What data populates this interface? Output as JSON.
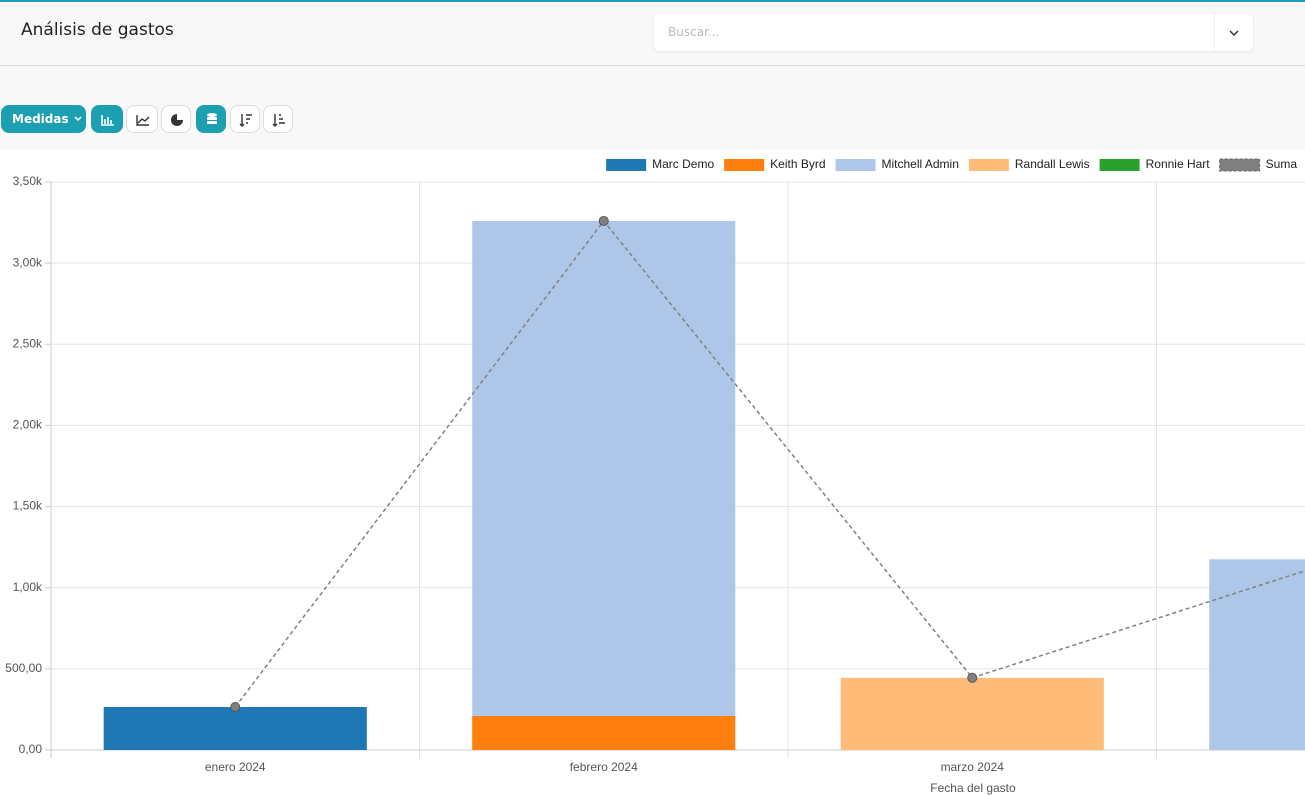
{
  "header": {
    "title": "Análisis de gastos",
    "search_placeholder": "Buscar..."
  },
  "toolbar": {
    "measures": "Medidas"
  },
  "chart_data": {
    "type": "bar",
    "stacked": true,
    "x_label": "Fecha del gasto",
    "categories": [
      "enero 2024",
      "febrero 2024",
      "marzo 2024",
      null
    ],
    "series": [
      {
        "name": "Marc Demo",
        "color": "#1f77b4",
        "values": [
          265,
          null,
          null,
          null
        ]
      },
      {
        "name": "Keith Byrd",
        "color": "#ff7f0e",
        "values": [
          null,
          210,
          null,
          null
        ]
      },
      {
        "name": "Mitchell Admin",
        "color": "#aec7e8",
        "values": [
          null,
          3050,
          null,
          1175
        ]
      },
      {
        "name": "Randall Lewis",
        "color": "#ffbb78",
        "values": [
          null,
          null,
          445,
          null
        ]
      },
      {
        "name": "Ronnie Hart",
        "color": "#2ca02c",
        "values": [
          null,
          null,
          null,
          null
        ]
      },
      {
        "name": "Suma",
        "color": "#808080",
        "type": "line",
        "dashed": true,
        "values": [
          265,
          3260,
          445,
          1175
        ]
      }
    ],
    "ylim": [
      0,
      3500
    ],
    "yticks": [
      {
        "value": 0,
        "label": "0,00"
      },
      {
        "value": 500,
        "label": "500,00"
      },
      {
        "value": 1000,
        "label": "1,00k"
      },
      {
        "value": 1500,
        "label": "1,50k"
      },
      {
        "value": 2000,
        "label": "2,00k"
      },
      {
        "value": 2500,
        "label": "2,50k"
      },
      {
        "value": 3000,
        "label": "3,00k"
      },
      {
        "value": 3500,
        "label": "3,50k"
      }
    ],
    "grid": true,
    "legend": "top-right"
  }
}
